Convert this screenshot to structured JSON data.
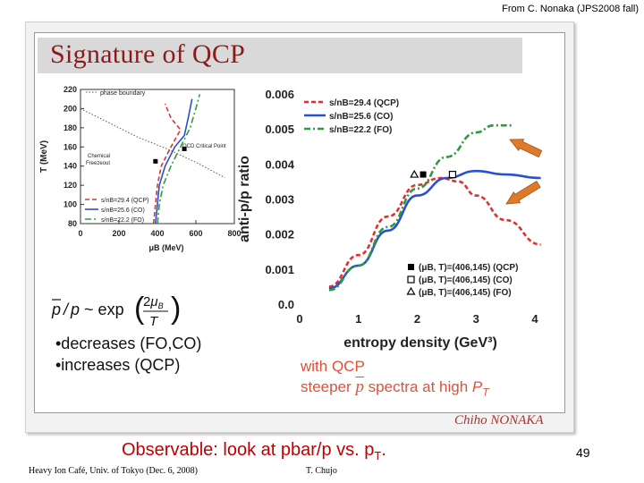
{
  "header": {
    "credit": "From C. Nonaka (JPS2008 fall)"
  },
  "slide": {
    "title": "Signature of QCP",
    "bullets": [
      "•decreases (FO,CO)",
      "•increases  (QCP)"
    ],
    "note_line1": "with QCP",
    "note_line2_pre": "steeper",
    "note_line2_post": "spectra at high",
    "signature": "Chiho NONAKA"
  },
  "equation": {
    "lhs": "p / p ~ exp",
    "numerator": "2μ",
    "numerator_sub": "B",
    "denominator": "T"
  },
  "colors": {
    "qcp": "#e03030",
    "co": "#2a4fd0",
    "fo": "#2e9a3a",
    "arrow": "#e07a2a",
    "title": "#8b1a1a"
  },
  "footer": {
    "observable_main": "Observable: look at pbar/p vs. p",
    "observable_sub": "T",
    "observable_end": ".",
    "page_number": "49",
    "left": "Heavy Ion Café, Univ. of Tokyo (Dec. 6, 2008)",
    "middle": "T. Chujo"
  },
  "chart_data": [
    {
      "type": "line",
      "xlabel": "μB (MeV)",
      "ylabel": "T (MeV)",
      "xlim": [
        0,
        800
      ],
      "ylim": [
        80,
        220
      ],
      "x_ticks": [
        "0",
        "200",
        "400",
        "600",
        "800"
      ],
      "y_ticks": [
        "80",
        "100",
        "120",
        "140",
        "160",
        "180",
        "200",
        "220"
      ],
      "annotations": [
        "phase boundary",
        "QCD Critical Point",
        "Chemical",
        "Freezeout"
      ],
      "critical_point": {
        "x": 540,
        "y": 158
      },
      "freezeout_point": {
        "x": 390,
        "y": 145
      },
      "series": [
        {
          "name": "s/nB=29.4 (QCP)",
          "style": "dashed",
          "points": [
            [
              380,
              80
            ],
            [
              390,
              100
            ],
            [
              400,
              120
            ],
            [
              420,
              140
            ],
            [
              470,
              160
            ],
            [
              520,
              178
            ],
            [
              470,
              190
            ],
            [
              440,
              205
            ]
          ]
        },
        {
          "name": "s/nB=25.6 (CO)",
          "style": "solid",
          "points": [
            [
              390,
              80
            ],
            [
              400,
              100
            ],
            [
              410,
              120
            ],
            [
              440,
              140
            ],
            [
              490,
              160
            ],
            [
              540,
              172
            ],
            [
              560,
              190
            ],
            [
              580,
              210
            ]
          ]
        },
        {
          "name": "s/nB=22.2 (FO)",
          "style": "dashdot",
          "points": [
            [
              400,
              80
            ],
            [
              410,
              100
            ],
            [
              430,
              120
            ],
            [
              470,
              140
            ],
            [
              520,
              160
            ],
            [
              570,
              180
            ],
            [
              600,
              200
            ],
            [
              620,
              215
            ]
          ]
        },
        {
          "name": "phase boundary",
          "style": "dotted",
          "points": [
            [
              0,
              200
            ],
            [
              150,
              185
            ],
            [
              300,
              170
            ],
            [
              450,
              158
            ],
            [
              600,
              144
            ],
            [
              750,
              128
            ]
          ]
        }
      ]
    },
    {
      "type": "line",
      "xlabel": "entropy density (GeV³)",
      "ylabel": "anti-p/p ratio",
      "xlim": [
        0,
        4
      ],
      "ylim": [
        0,
        0.006
      ],
      "x_ticks": [
        "0",
        "1",
        "2",
        "3",
        "4"
      ],
      "y_ticks": [
        "0.0",
        "0.001",
        "0.002",
        "0.003",
        "0.004",
        "0.005",
        "0.006"
      ],
      "legend_position": "top-left",
      "series": [
        {
          "name": "s/nB=29.4 (QCP)",
          "style": "dashed",
          "values": [
            [
              0.5,
              0.0005
            ],
            [
              1.0,
              0.0014
            ],
            [
              1.5,
              0.0025
            ],
            [
              2.0,
              0.0034
            ],
            [
              2.4,
              0.0036
            ],
            [
              2.7,
              0.0035
            ],
            [
              3.0,
              0.0031
            ],
            [
              3.5,
              0.0024
            ],
            [
              4.1,
              0.0017
            ]
          ]
        },
        {
          "name": "s/nB=25.6 (CO)",
          "style": "solid",
          "values": [
            [
              0.5,
              0.00045
            ],
            [
              1.0,
              0.0011
            ],
            [
              1.5,
              0.0021
            ],
            [
              2.0,
              0.0031
            ],
            [
              2.5,
              0.0036
            ],
            [
              3.0,
              0.0038
            ],
            [
              3.5,
              0.0037
            ],
            [
              4.1,
              0.0036
            ]
          ]
        },
        {
          "name": "s/nB=22.2 (FO)",
          "style": "dashdot",
          "values": [
            [
              0.5,
              0.0004
            ],
            [
              1.0,
              0.0011
            ],
            [
              1.5,
              0.0022
            ],
            [
              2.0,
              0.0033
            ],
            [
              2.5,
              0.0042
            ],
            [
              3.0,
              0.0049
            ],
            [
              3.3,
              0.0051
            ],
            [
              3.6,
              0.0051
            ]
          ]
        }
      ],
      "markers": [
        {
          "label": "(μB, T)=(406,145) (QCP)",
          "symbol": "filled-square",
          "x": 2.1,
          "y": 0.0037
        },
        {
          "label": "(μB, T)=(406,145) (CO)",
          "symbol": "open-square",
          "x": 2.6,
          "y": 0.0037
        },
        {
          "label": "(μB, T)=(406,145) (FO)",
          "symbol": "open-triangle",
          "x": 1.95,
          "y": 0.0037
        }
      ]
    }
  ]
}
